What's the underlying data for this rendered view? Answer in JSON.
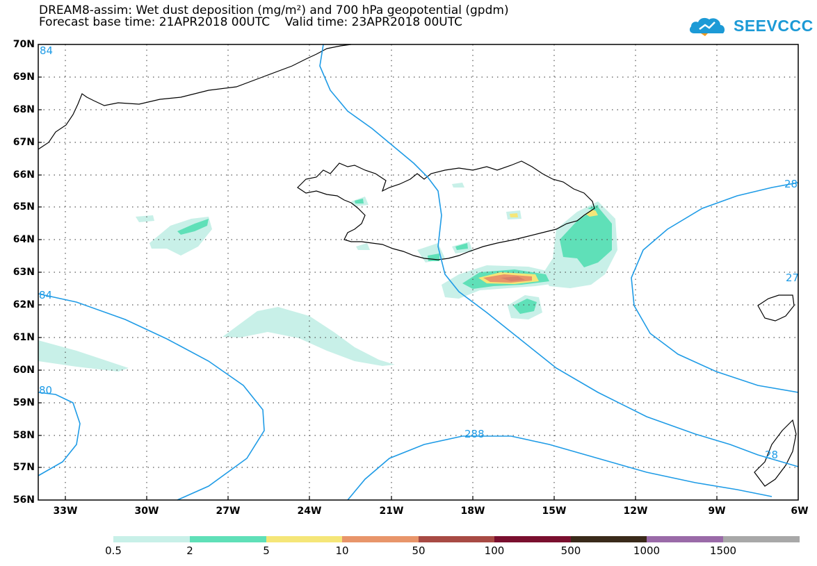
{
  "title": {
    "line1": "DREAM8-assim: Wet dust deposition (mg/m²) and 700 hPa geopotential (gpdm)",
    "line2": "Forecast base time: 21APR2018 00UTC    Valid time: 23APR2018 00UTC"
  },
  "logo": {
    "text": "SEEVCCC"
  },
  "axes": {
    "lat_labels": [
      "70N",
      "69N",
      "68N",
      "67N",
      "66N",
      "65N",
      "64N",
      "63N",
      "62N",
      "61N",
      "60N",
      "59N",
      "58N",
      "57N",
      "56N"
    ],
    "lon_labels": [
      "33W",
      "30W",
      "27W",
      "24W",
      "21W",
      "18W",
      "15W",
      "12W",
      "9W",
      "6W"
    ]
  },
  "contour_labels": [
    "84",
    "84",
    "80",
    "288",
    "28",
    "27",
    "28"
  ],
  "colorbar": {
    "labels": [
      "0.5",
      "2",
      "5",
      "10",
      "50",
      "100",
      "500",
      "1000",
      "1500"
    ],
    "colors": [
      "#c8f0e8",
      "#5fe0b8",
      "#f5e678",
      "#e8956a",
      "#a84a44",
      "#7a0f2e",
      "#3a2a1a",
      "#9a6aa8",
      "#a8a8a8"
    ]
  },
  "colors": {
    "contour": "#1e9be6",
    "coast": "#000000",
    "grid": "#555555"
  }
}
